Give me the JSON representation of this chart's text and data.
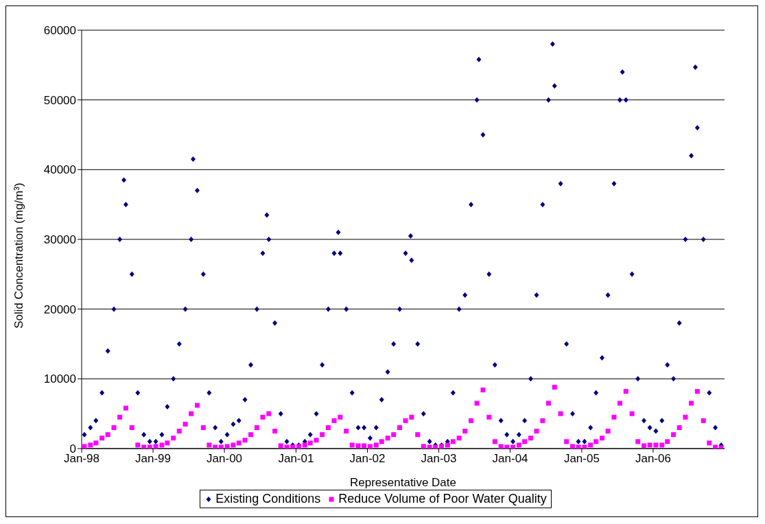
{
  "chart_data": {
    "type": "scatter",
    "xlabel": "Representative Date",
    "ylabel": "Solid Concentration (mg/m³)",
    "xlim": [
      "1998-01-01",
      "2007-01-01"
    ],
    "xticks": [
      {
        "value": "1998-01-01",
        "label": "Jan-98"
      },
      {
        "value": "1999-01-01",
        "label": "Jan-99"
      },
      {
        "value": "2000-01-01",
        "label": "Jan-00"
      },
      {
        "value": "2001-01-01",
        "label": "Jan-01"
      },
      {
        "value": "2002-01-01",
        "label": "Jan-02"
      },
      {
        "value": "2003-01-01",
        "label": "Jan-03"
      },
      {
        "value": "2004-01-01",
        "label": "Jan-04"
      },
      {
        "value": "2005-01-01",
        "label": "Jan-05"
      },
      {
        "value": "2006-01-01",
        "label": "Jan-06"
      }
    ],
    "ylim": [
      0,
      60000
    ],
    "yticks": [
      0,
      10000,
      20000,
      30000,
      40000,
      50000,
      60000
    ],
    "grid": "y",
    "legend": "bottom",
    "series": [
      {
        "name": "Existing Conditions",
        "color": "#000080",
        "marker": "diamond",
        "x": [
          "1998-01-15",
          "1998-02-15",
          "1998-03-15",
          "1998-04-15",
          "1998-05-15",
          "1998-06-15",
          "1998-07-15",
          "1998-08-05",
          "1998-08-15",
          "1998-09-15",
          "1998-10-15",
          "1998-11-15",
          "1998-12-15",
          "1999-01-15",
          "1999-02-15",
          "1999-03-15",
          "1999-04-15",
          "1999-05-15",
          "1999-06-15",
          "1999-07-15",
          "1999-07-25",
          "1999-08-15",
          "1999-09-15",
          "1999-10-15",
          "1999-11-15",
          "1999-12-15",
          "2000-01-15",
          "2000-02-15",
          "2000-03-15",
          "2000-04-15",
          "2000-05-15",
          "2000-06-15",
          "2000-07-15",
          "2000-08-05",
          "2000-08-15",
          "2000-09-15",
          "2000-10-15",
          "2000-11-15",
          "2000-12-15",
          "2001-01-15",
          "2001-02-15",
          "2001-03-15",
          "2001-04-15",
          "2001-05-15",
          "2001-06-15",
          "2001-07-15",
          "2001-08-05",
          "2001-08-15",
          "2001-09-15",
          "2001-10-15",
          "2001-11-15",
          "2001-12-15",
          "2002-01-15",
          "2002-02-15",
          "2002-03-15",
          "2002-04-15",
          "2002-05-15",
          "2002-06-15",
          "2002-07-15",
          "2002-08-10",
          "2002-08-15",
          "2002-09-15",
          "2002-10-15",
          "2002-11-15",
          "2002-12-15",
          "2003-01-15",
          "2003-02-15",
          "2003-03-15",
          "2003-04-15",
          "2003-05-15",
          "2003-06-15",
          "2003-07-15",
          "2003-07-25",
          "2003-08-15",
          "2003-09-15",
          "2003-10-15",
          "2003-11-15",
          "2003-12-15",
          "2004-01-15",
          "2004-02-15",
          "2004-03-15",
          "2004-04-15",
          "2004-05-15",
          "2004-06-15",
          "2004-07-15",
          "2004-08-05",
          "2004-08-15",
          "2004-09-15",
          "2004-10-15",
          "2004-11-15",
          "2004-12-15",
          "2005-01-15",
          "2005-02-15",
          "2005-03-15",
          "2005-04-15",
          "2005-05-15",
          "2005-06-15",
          "2005-07-15",
          "2005-07-28",
          "2005-08-15",
          "2005-09-15",
          "2005-10-15",
          "2005-11-15",
          "2005-12-15",
          "2006-01-15",
          "2006-02-15",
          "2006-03-15",
          "2006-04-15",
          "2006-05-15",
          "2006-06-15",
          "2006-07-15",
          "2006-08-05",
          "2006-08-15",
          "2006-09-15",
          "2006-10-15",
          "2006-11-15",
          "2006-12-15"
        ],
        "values": [
          2000,
          3000,
          4000,
          8000,
          14000,
          20000,
          30000,
          38500,
          35000,
          25000,
          8000,
          2000,
          1000,
          1000,
          2000,
          6000,
          10000,
          15000,
          20000,
          30000,
          41500,
          37000,
          25000,
          8000,
          3000,
          1000,
          2000,
          3500,
          4000,
          7000,
          12000,
          20000,
          28000,
          33500,
          30000,
          18000,
          5000,
          1000,
          500,
          500,
          1000,
          2000,
          5000,
          12000,
          20000,
          28000,
          31000,
          28000,
          20000,
          8000,
          3000,
          3000,
          1500,
          3000,
          7000,
          11000,
          15000,
          20000,
          28000,
          30500,
          27000,
          15000,
          5000,
          1000,
          500,
          500,
          1000,
          8000,
          20000,
          22000,
          35000,
          50000,
          55800,
          45000,
          25000,
          12000,
          4000,
          2000,
          1000,
          2000,
          4000,
          10000,
          22000,
          35000,
          50000,
          58000,
          52000,
          38000,
          15000,
          5000,
          1000,
          1000,
          3000,
          8000,
          13000,
          22000,
          38000,
          50000,
          54000,
          50000,
          25000,
          10000,
          4000,
          3000,
          2500,
          4000,
          12000,
          10000,
          18000,
          30000,
          42000,
          54700,
          46000,
          30000,
          8000,
          3000,
          500
        ]
      },
      {
        "name": "Reduce Volume of Poor Water Quality",
        "color": "#ff00ff",
        "marker": "square",
        "x": [
          "1998-01-15",
          "1998-02-15",
          "1998-03-15",
          "1998-04-15",
          "1998-05-15",
          "1998-06-15",
          "1998-07-15",
          "1998-08-15",
          "1998-09-15",
          "1998-10-15",
          "1998-11-15",
          "1998-12-15",
          "1999-01-15",
          "1999-02-15",
          "1999-03-15",
          "1999-04-15",
          "1999-05-15",
          "1999-06-15",
          "1999-07-15",
          "1999-08-15",
          "1999-09-15",
          "1999-10-15",
          "1999-11-15",
          "1999-12-15",
          "2000-01-15",
          "2000-02-15",
          "2000-03-15",
          "2000-04-15",
          "2000-05-15",
          "2000-06-15",
          "2000-07-15",
          "2000-08-15",
          "2000-09-15",
          "2000-10-15",
          "2000-11-15",
          "2000-12-15",
          "2001-01-15",
          "2001-02-15",
          "2001-03-15",
          "2001-04-15",
          "2001-05-15",
          "2001-06-15",
          "2001-07-15",
          "2001-08-15",
          "2001-09-15",
          "2001-10-15",
          "2001-11-15",
          "2001-12-15",
          "2002-01-15",
          "2002-02-15",
          "2002-03-15",
          "2002-04-15",
          "2002-05-15",
          "2002-06-15",
          "2002-07-15",
          "2002-08-15",
          "2002-09-15",
          "2002-10-15",
          "2002-11-15",
          "2002-12-15",
          "2003-01-15",
          "2003-02-15",
          "2003-03-15",
          "2003-04-15",
          "2003-05-15",
          "2003-06-15",
          "2003-07-15",
          "2003-08-15",
          "2003-09-15",
          "2003-10-15",
          "2003-11-15",
          "2003-12-15",
          "2004-01-15",
          "2004-02-15",
          "2004-03-15",
          "2004-04-15",
          "2004-05-15",
          "2004-06-15",
          "2004-07-15",
          "2004-08-15",
          "2004-09-15",
          "2004-10-15",
          "2004-11-15",
          "2004-12-15",
          "2005-01-15",
          "2005-02-15",
          "2005-03-15",
          "2005-04-15",
          "2005-05-15",
          "2005-06-15",
          "2005-07-15",
          "2005-08-15",
          "2005-09-15",
          "2005-10-15",
          "2005-11-15",
          "2005-12-15",
          "2006-01-15",
          "2006-02-15",
          "2006-03-15",
          "2006-04-15",
          "2006-05-15",
          "2006-06-15",
          "2006-07-15",
          "2006-08-15",
          "2006-09-15",
          "2006-10-15",
          "2006-11-15",
          "2006-12-15"
        ],
        "values": [
          300,
          500,
          800,
          1500,
          2000,
          3000,
          4500,
          5800,
          3000,
          500,
          200,
          200,
          300,
          500,
          800,
          1500,
          2500,
          3500,
          5000,
          6200,
          3000,
          500,
          200,
          200,
          300,
          500,
          800,
          1200,
          2000,
          3000,
          4500,
          5000,
          2500,
          400,
          200,
          200,
          300,
          500,
          800,
          1200,
          2000,
          3000,
          4000,
          4500,
          2500,
          500,
          400,
          400,
          300,
          500,
          1000,
          1500,
          2000,
          3000,
          4000,
          4500,
          2000,
          300,
          200,
          200,
          300,
          500,
          1000,
          1500,
          2500,
          4000,
          6500,
          8400,
          4500,
          1000,
          300,
          200,
          200,
          500,
          1000,
          1500,
          2500,
          4000,
          6500,
          8800,
          5000,
          1000,
          300,
          200,
          200,
          500,
          1000,
          1500,
          2500,
          4500,
          6500,
          8200,
          5000,
          1000,
          400,
          500,
          500,
          500,
          1000,
          2000,
          3000,
          4500,
          6500,
          8200,
          4000,
          800,
          200,
          100
        ]
      }
    ]
  }
}
